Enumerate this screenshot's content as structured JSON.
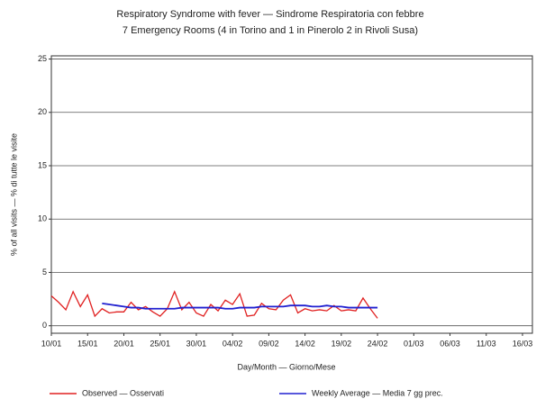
{
  "chart_data": {
    "type": "line",
    "title": "Respiratory Syndrome with fever — Sindrome Respiratoria con febbre",
    "subtitle": "7 Emergency Rooms (4 in Torino and 1 in Pinerolo 2 in Rivoli Susa)",
    "x_label": "Day/Month — Giorno/Mese",
    "y_label": "% of all visits — % di tutte le visite",
    "categories": [
      "10/01",
      null,
      null,
      null,
      null,
      "15/01",
      null,
      null,
      null,
      null,
      "20/01",
      null,
      null,
      null,
      null,
      "25/01",
      null,
      null,
      null,
      null,
      "30/01",
      null,
      null,
      null,
      null,
      "04/02",
      null,
      null,
      null,
      null,
      "09/02",
      null,
      null,
      null,
      null,
      "14/02",
      null,
      null,
      null,
      null,
      "19/02",
      null,
      null,
      null,
      null,
      "24/02",
      null,
      null,
      null,
      null,
      "01/03",
      null,
      null,
      null,
      null,
      "06/03",
      null,
      null,
      null,
      null,
      "11/03",
      null,
      null,
      null,
      null,
      "16/03"
    ],
    "series": [
      {
        "name": "Observed — Osservati",
        "color": "#e02020",
        "values": [
          2.8,
          2.2,
          1.5,
          3.2,
          1.8,
          2.9,
          0.9,
          1.6,
          1.2,
          1.3,
          1.3,
          2.2,
          1.5,
          1.8,
          1.3,
          0.9,
          1.6,
          3.2,
          1.5,
          2.2,
          1.2,
          0.9,
          2.0,
          1.4,
          2.4,
          2.0,
          3.0,
          0.9,
          1.0,
          2.1,
          1.6,
          1.5,
          2.4,
          2.9,
          1.2,
          1.6,
          1.4,
          1.5,
          1.4,
          1.9,
          1.4,
          1.5,
          1.4,
          2.6,
          1.6,
          0.7,
          null,
          null,
          null,
          null,
          null,
          null,
          null,
          null,
          null,
          null,
          null,
          null,
          null,
          null,
          null,
          null,
          null,
          null,
          null,
          null
        ]
      },
      {
        "name": "Weekly Average — Media 7 gg prec.",
        "color": "#2020d0",
        "values": [
          null,
          null,
          null,
          null,
          null,
          null,
          null,
          2.1,
          2.0,
          1.9,
          1.8,
          1.7,
          1.7,
          1.6,
          1.6,
          1.6,
          1.6,
          1.6,
          1.7,
          1.7,
          1.7,
          1.7,
          1.7,
          1.7,
          1.6,
          1.6,
          1.7,
          1.7,
          1.7,
          1.8,
          1.8,
          1.8,
          1.8,
          1.9,
          1.9,
          1.9,
          1.8,
          1.8,
          1.9,
          1.8,
          1.8,
          1.7,
          1.7,
          1.7,
          1.7,
          1.7,
          null,
          null,
          null,
          null,
          null,
          null,
          null,
          null,
          null,
          null,
          null,
          null,
          null,
          null,
          null,
          null,
          null,
          null,
          null,
          null
        ]
      }
    ],
    "ylim": [
      -0.7,
      25.3
    ],
    "yticks": [
      0,
      5,
      10,
      15,
      20,
      25
    ],
    "grid": true
  }
}
